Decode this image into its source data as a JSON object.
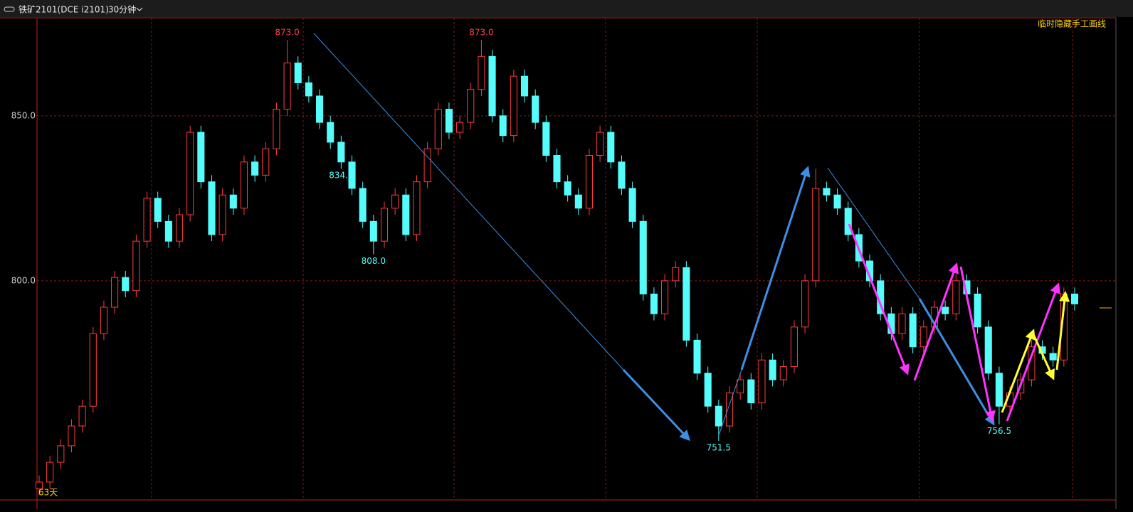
{
  "header": {
    "symbol": "铁矿2101(DCE i2101)",
    "period": "30分钟"
  },
  "chart_data": {
    "type": "candlestick",
    "ylim": [
      733.6,
      879.7
    ],
    "yticks": [
      {
        "value": 800,
        "label": "800.0"
      },
      {
        "value": 850,
        "label": "850.0"
      }
    ],
    "grid": true,
    "up_color": "#ff3c3c",
    "down_color": "#54fcfc",
    "open": [
      737,
      739,
      745,
      750,
      756,
      762,
      784,
      792,
      801,
      797,
      812,
      825,
      818,
      812,
      820,
      845,
      830,
      814,
      826,
      822,
      836,
      832,
      840,
      852,
      866,
      860,
      856,
      848,
      842,
      836,
      828,
      818,
      812,
      822,
      826,
      814,
      830,
      840,
      852,
      845,
      848,
      858,
      868,
      850,
      844,
      862,
      856,
      848,
      838,
      830,
      826,
      822,
      838,
      845,
      836,
      828,
      818,
      796,
      790,
      800,
      804,
      782,
      772,
      762,
      756,
      766,
      770,
      763,
      776,
      770,
      774,
      786,
      800,
      828,
      826,
      822,
      814,
      806,
      800,
      790,
      784,
      790,
      780,
      786,
      792,
      790,
      800,
      796,
      786,
      772,
      762,
      766,
      770,
      780,
      778,
      776,
      796
    ],
    "high": [
      741,
      747,
      752,
      758,
      764,
      786,
      794,
      803,
      803,
      814,
      827,
      827,
      820,
      822,
      847,
      847,
      832,
      828,
      828,
      838,
      838,
      842,
      854,
      873,
      868,
      862,
      858,
      850,
      844,
      838,
      830,
      820,
      824,
      828,
      828,
      832,
      842,
      854,
      854,
      850,
      860,
      873,
      870,
      852,
      864,
      864,
      858,
      850,
      840,
      832,
      828,
      840,
      847,
      847,
      838,
      830,
      820,
      798,
      802,
      806,
      806,
      784,
      774,
      764,
      768,
      772,
      772,
      778,
      778,
      776,
      788,
      802,
      834,
      830,
      828,
      824,
      816,
      808,
      802,
      792,
      792,
      792,
      788,
      794,
      794,
      802,
      802,
      798,
      788,
      774,
      768,
      772,
      782,
      782,
      780,
      798,
      798
    ],
    "low": [
      735,
      737,
      743,
      748,
      754,
      760,
      782,
      790,
      795,
      795,
      810,
      816,
      810,
      810,
      818,
      828,
      812,
      812,
      820,
      820,
      830,
      830,
      838,
      850,
      858,
      854,
      846,
      840,
      834,
      826,
      816,
      808,
      810,
      820,
      812,
      812,
      828,
      838,
      843,
      843,
      846,
      856,
      848,
      842,
      842,
      854,
      846,
      836,
      828,
      824,
      820,
      820,
      836,
      834,
      826,
      816,
      794,
      788,
      788,
      798,
      780,
      770,
      760,
      751.5,
      754,
      764,
      761,
      761,
      768,
      768,
      772,
      784,
      798,
      824,
      820,
      812,
      804,
      798,
      788,
      782,
      782,
      778,
      778,
      784,
      788,
      788,
      794,
      784,
      770,
      756.5,
      760,
      764,
      768,
      776,
      774,
      774,
      791
    ],
    "close": [
      739,
      745,
      750,
      756,
      762,
      784,
      792,
      801,
      797,
      812,
      825,
      818,
      812,
      820,
      845,
      830,
      814,
      826,
      822,
      836,
      832,
      840,
      852,
      866,
      860,
      856,
      848,
      842,
      836,
      828,
      818,
      812,
      822,
      826,
      814,
      830,
      840,
      852,
      845,
      848,
      858,
      868,
      850,
      844,
      862,
      856,
      848,
      838,
      830,
      826,
      822,
      838,
      845,
      836,
      828,
      818,
      796,
      790,
      800,
      804,
      782,
      772,
      762,
      756,
      766,
      770,
      763,
      776,
      770,
      774,
      786,
      800,
      828,
      826,
      822,
      814,
      806,
      800,
      790,
      784,
      790,
      780,
      786,
      792,
      790,
      800,
      796,
      786,
      772,
      762,
      766,
      770,
      780,
      778,
      776,
      796,
      793
    ],
    "annotations": [
      {
        "text": "873.0",
        "value": 873
      },
      {
        "text": "808.0",
        "value": 808
      },
      {
        "text": "873.0",
        "value": 873
      },
      {
        "text": "751.5",
        "value": 751.5
      },
      {
        "text": "834.0",
        "value": 834
      },
      {
        "text": "756.5",
        "value": 756.5
      }
    ],
    "note": "63天",
    "toggle": "临时隐藏手工画线"
  }
}
